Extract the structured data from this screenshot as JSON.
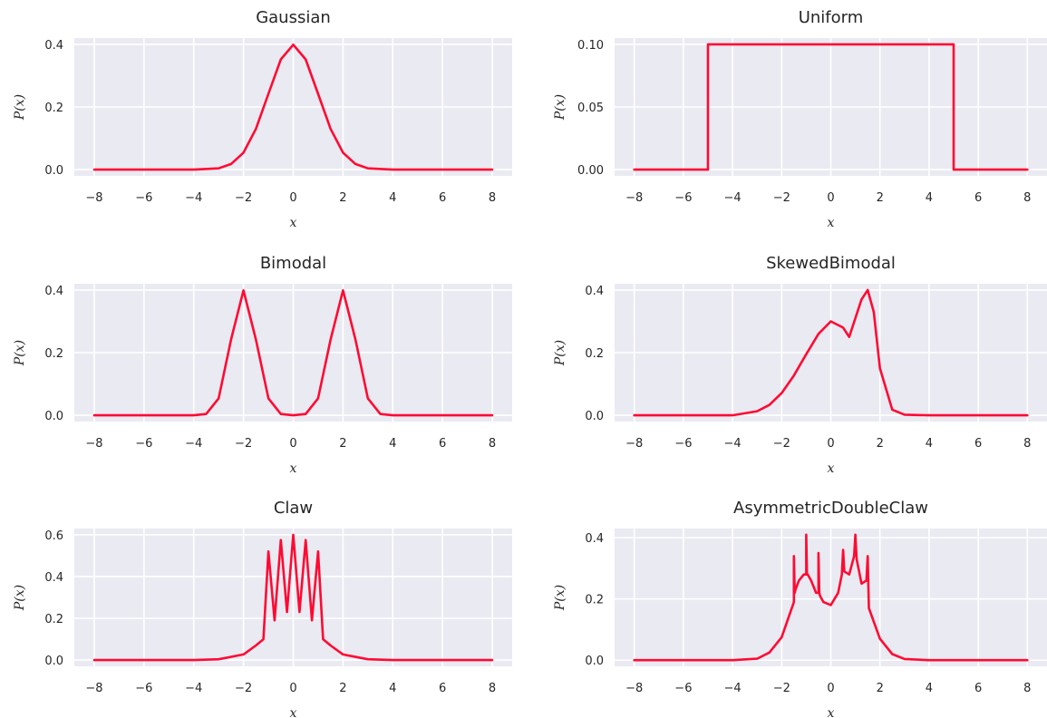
{
  "colors": {
    "line": "#ff0a33",
    "panel_background": "#eaeaf2",
    "grid": "#ffffff"
  },
  "chart_data": [
    {
      "type": "line",
      "title": "Gaussian",
      "xlabel": "x",
      "ylabel": "P(x)",
      "xlim": [
        -8.8,
        8.8
      ],
      "ylim": [
        -0.02,
        0.42
      ],
      "xticks": [
        -8,
        -6,
        -4,
        -2,
        0,
        2,
        4,
        6,
        8
      ],
      "yticks": [
        0.0,
        0.2,
        0.4
      ],
      "ytick_labels": [
        "0.0",
        "0.2",
        "0.4"
      ],
      "grid": true,
      "series": [
        {
          "x": [
            -8,
            -4,
            -3,
            -2.5,
            -2,
            -1.5,
            -1,
            -0.5,
            0,
            0.5,
            1,
            1.5,
            2,
            2.5,
            3,
            4,
            8
          ],
          "y": [
            0,
            0,
            0.004,
            0.018,
            0.054,
            0.13,
            0.242,
            0.352,
            0.399,
            0.352,
            0.242,
            0.13,
            0.054,
            0.018,
            0.004,
            0,
            0
          ]
        }
      ]
    },
    {
      "type": "line",
      "title": "Uniform",
      "xlabel": "x",
      "ylabel": "P(x)",
      "xlim": [
        -8.8,
        8.8
      ],
      "ylim": [
        -0.005,
        0.105
      ],
      "xticks": [
        -8,
        -6,
        -4,
        -2,
        0,
        2,
        4,
        6,
        8
      ],
      "yticks": [
        0.0,
        0.05,
        0.1
      ],
      "ytick_labels": [
        "0.00",
        "0.05",
        "0.10"
      ],
      "grid": true,
      "series": [
        {
          "x": [
            -8,
            -5,
            -5,
            5,
            5,
            8
          ],
          "y": [
            0,
            0,
            0.1,
            0.1,
            0,
            0
          ]
        }
      ]
    },
    {
      "type": "line",
      "title": "Bimodal",
      "xlabel": "x",
      "ylabel": "P(x)",
      "xlim": [
        -8.8,
        8.8
      ],
      "ylim": [
        -0.02,
        0.42
      ],
      "xticks": [
        -8,
        -6,
        -4,
        -2,
        0,
        2,
        4,
        6,
        8
      ],
      "yticks": [
        0.0,
        0.2,
        0.4
      ],
      "ytick_labels": [
        "0.0",
        "0.2",
        "0.4"
      ],
      "grid": true,
      "series": [
        {
          "x": [
            -8,
            -4,
            -3.5,
            -3,
            -2.5,
            -2,
            -1.5,
            -1,
            -0.5,
            0,
            0.5,
            1,
            1.5,
            2,
            2.5,
            3,
            3.5,
            4,
            8
          ],
          "y": [
            0,
            0,
            0.004,
            0.054,
            0.242,
            0.399,
            0.242,
            0.054,
            0.004,
            0,
            0.004,
            0.054,
            0.242,
            0.399,
            0.242,
            0.054,
            0.004,
            0,
            0
          ]
        }
      ]
    },
    {
      "type": "line",
      "title": "SkewedBimodal",
      "xlabel": "x",
      "ylabel": "P(x)",
      "xlim": [
        -8.8,
        8.8
      ],
      "ylim": [
        -0.02,
        0.42
      ],
      "xticks": [
        -8,
        -6,
        -4,
        -2,
        0,
        2,
        4,
        6,
        8
      ],
      "yticks": [
        0.0,
        0.2,
        0.4
      ],
      "ytick_labels": [
        "0.0",
        "0.2",
        "0.4"
      ],
      "grid": true,
      "series": [
        {
          "x": [
            -8,
            -4,
            -3,
            -2.5,
            -2,
            -1.5,
            -1,
            -0.5,
            0,
            0.5,
            0.75,
            1,
            1.25,
            1.5,
            1.75,
            2,
            2.5,
            3,
            4,
            8
          ],
          "y": [
            0,
            0,
            0.013,
            0.033,
            0.071,
            0.127,
            0.195,
            0.26,
            0.3,
            0.28,
            0.25,
            0.31,
            0.37,
            0.4,
            0.33,
            0.15,
            0.018,
            0.002,
            0,
            0
          ]
        }
      ]
    },
    {
      "type": "line",
      "title": "Claw",
      "xlabel": "x",
      "ylabel": "P(x)",
      "xlim": [
        -8.8,
        8.8
      ],
      "ylim": [
        -0.03,
        0.63
      ],
      "xticks": [
        -8,
        -6,
        -4,
        -2,
        0,
        2,
        4,
        6,
        8
      ],
      "yticks": [
        0.0,
        0.2,
        0.4,
        0.6
      ],
      "ytick_labels": [
        "0.0",
        "0.2",
        "0.4",
        "0.6"
      ],
      "grid": true,
      "series": [
        {
          "x": [
            -8,
            -4,
            -3,
            -2,
            -1.5,
            -1.2,
            -1,
            -0.75,
            -0.5,
            -0.25,
            0,
            0.25,
            0.5,
            0.75,
            1,
            1.2,
            1.5,
            2,
            3,
            4,
            8
          ],
          "y": [
            0,
            0,
            0.004,
            0.027,
            0.07,
            0.1,
            0.52,
            0.19,
            0.575,
            0.23,
            0.6,
            0.23,
            0.575,
            0.19,
            0.52,
            0.1,
            0.07,
            0.027,
            0.004,
            0,
            0
          ]
        }
      ]
    },
    {
      "type": "line",
      "title": "AsymmetricDoubleClaw",
      "xlabel": "x",
      "ylabel": "P(x)",
      "xlim": [
        -8.8,
        8.8
      ],
      "ylim": [
        -0.02,
        0.43
      ],
      "xticks": [
        -8,
        -6,
        -4,
        -2,
        0,
        2,
        4,
        6,
        8
      ],
      "yticks": [
        0.0,
        0.2,
        0.4
      ],
      "ytick_labels": [
        "0.0",
        "0.2",
        "0.4"
      ],
      "grid": true,
      "series": [
        {
          "x": [
            -8,
            -4,
            -3,
            -2.5,
            -2,
            -1.5,
            -1.5,
            -1.47,
            -1.44,
            -1.3,
            -1.1,
            -1.0,
            -1.0,
            -0.97,
            -0.94,
            -0.8,
            -0.6,
            -0.5,
            -0.5,
            -0.47,
            -0.44,
            -0.3,
            0,
            0.3,
            0.45,
            0.5,
            0.55,
            0.75,
            0.95,
            1.0,
            1.05,
            1.25,
            1.45,
            1.5,
            1.55,
            2,
            2.5,
            3,
            4,
            8
          ],
          "y": [
            0,
            0,
            0.005,
            0.025,
            0.075,
            0.19,
            0.34,
            0.22,
            0.23,
            0.26,
            0.28,
            0.28,
            0.41,
            0.28,
            0.28,
            0.26,
            0.22,
            0.22,
            0.35,
            0.22,
            0.21,
            0.19,
            0.18,
            0.22,
            0.28,
            0.36,
            0.29,
            0.28,
            0.34,
            0.41,
            0.33,
            0.25,
            0.26,
            0.34,
            0.17,
            0.07,
            0.02,
            0.004,
            0,
            0
          ]
        }
      ]
    }
  ]
}
